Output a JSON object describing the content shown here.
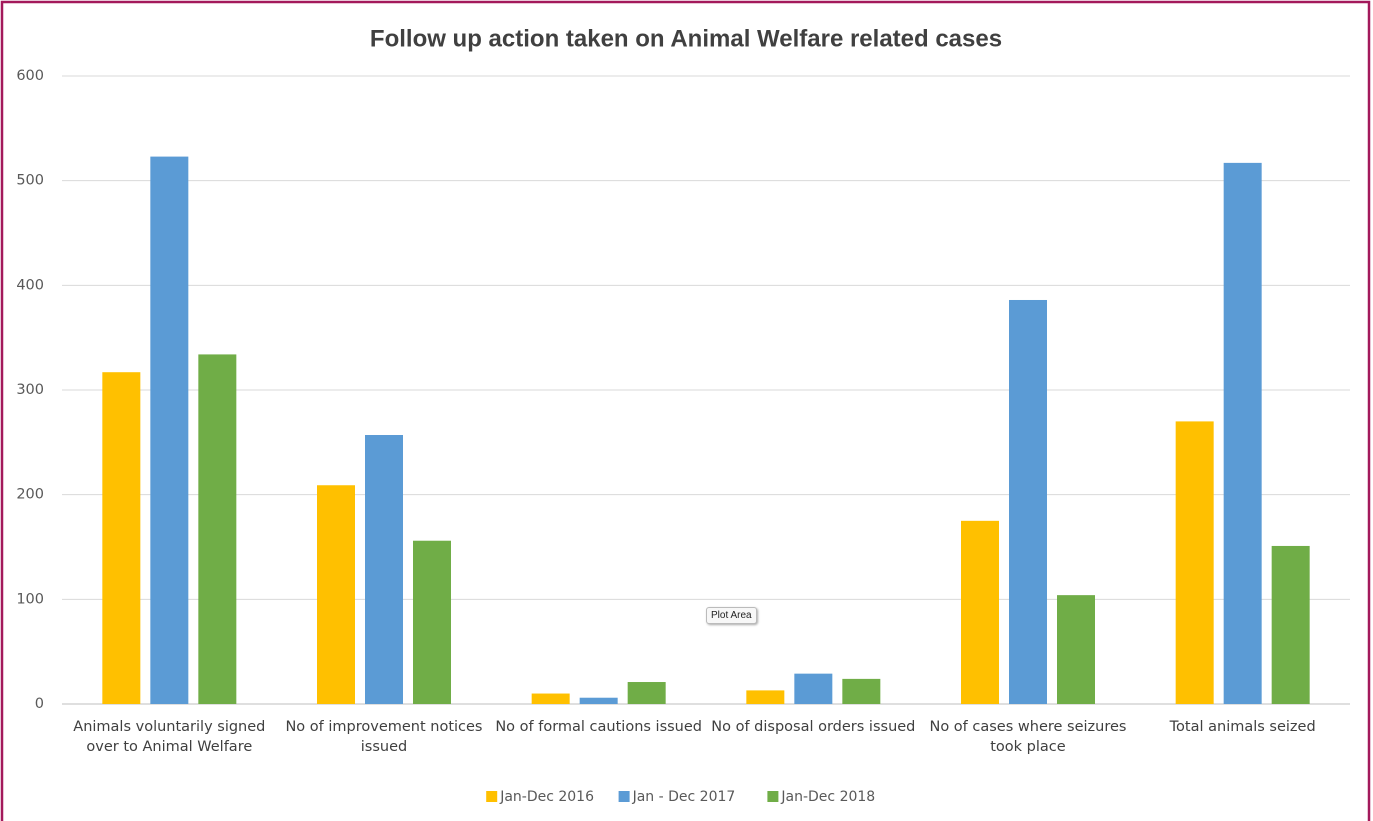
{
  "chart_data": {
    "type": "bar",
    "title": "Follow up action taken on Animal Welfare related cases",
    "categories": [
      "Animals voluntarily signed over to Animal Welfare",
      "No of improvement notices issued",
      "No of formal cautions issued",
      "No of disposal orders issued",
      "No of cases where seizures took place",
      "Total animals seized"
    ],
    "series": [
      {
        "name": "Jan-Dec 2016",
        "color": "#ffc000",
        "values": [
          317,
          209,
          10,
          13,
          175,
          270
        ]
      },
      {
        "name": "Jan - Dec 2017",
        "color": "#5b9bd5",
        "values": [
          523,
          257,
          6,
          29,
          386,
          517
        ]
      },
      {
        "name": "Jan-Dec 2018",
        "color": "#70ad47",
        "values": [
          334,
          156,
          21,
          24,
          104,
          151
        ]
      }
    ],
    "ylim": [
      0,
      600
    ],
    "yticks": [
      0,
      100,
      200,
      300,
      400,
      500,
      600
    ],
    "grid": true,
    "legend": "bottom",
    "annotation": "Plot Area"
  }
}
